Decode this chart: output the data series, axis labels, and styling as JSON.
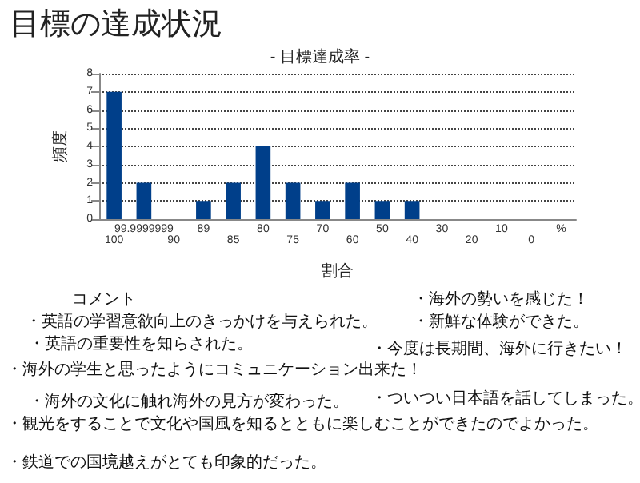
{
  "chart_data": {
    "type": "bar",
    "title": "目標の達成状況",
    "subtitle": "- 目標達成率 -",
    "xlabel": "割合",
    "ylabel": "頻度",
    "categories": [
      "100",
      "99.9999999",
      "90",
      "89",
      "85",
      "80",
      "75",
      "70",
      "60",
      "50",
      "40",
      "30",
      "20",
      "10",
      "0",
      "%"
    ],
    "values": [
      7,
      2,
      0,
      1,
      2,
      4,
      2,
      1,
      2,
      1,
      1,
      0,
      0,
      0,
      0,
      0
    ],
    "color": "#003f8a",
    "ylim": [
      0,
      8
    ],
    "yticks": [
      0,
      1,
      2,
      3,
      4,
      5,
      6,
      7,
      8
    ],
    "grid": "y",
    "annotations": [
      "コメント",
      "・海外の勢いを感じた！",
      "・英語の学習意欲向上のきっかけを与えられた。",
      "・新鮮な体験ができた。",
      "・英語の重要性を知らされた。",
      "・今度は長期間、海外に行きたい！",
      "・海外の学生と思ったようにコミュニケーション出来た！",
      "・海外の文化に触れ海外の見方が変わった。",
      "・ついつい日本語を話してしまった。",
      "・観光をすることで文化や国風を知るとともに楽しむことができたのでよかった。",
      "・鉄道での国境越えがとても印象的だった。"
    ]
  }
}
